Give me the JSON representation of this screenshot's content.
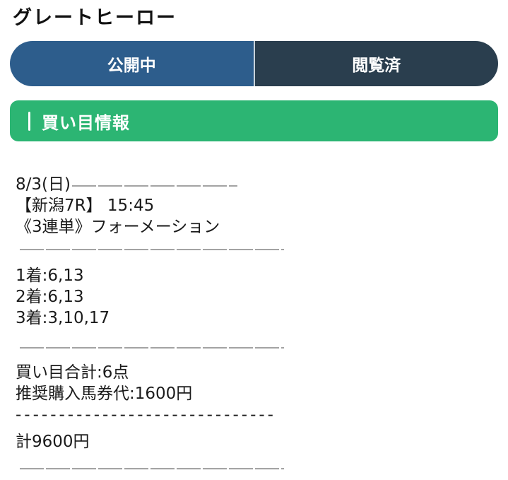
{
  "header": {
    "title": "グレートヒーロー"
  },
  "tabs": [
    {
      "label": "公開中",
      "state": "active"
    },
    {
      "label": "閲覧済",
      "state": "inactive"
    }
  ],
  "section": {
    "title": "買い目情報"
  },
  "race": {
    "date": "8/3(日)",
    "name_time": "【新潟7R】 15:45",
    "bet_type": "《3連単》フォーメーション"
  },
  "bets": [
    "1着:6,13",
    "2着:6,13",
    "3着:3,10,17"
  ],
  "summary": {
    "total_points": "買い目合計:6点",
    "recommended_cost": "推奨購入馬券代:1600円",
    "separator": "------------------------------",
    "total": "計9600円"
  },
  "colors": {
    "tab_active_bg": "#2d5d8c",
    "tab_inactive_bg": "#2a3e4e",
    "section_banner_bg": "#2cb573",
    "text": "#1b1b1b",
    "divider": "#a3a3a3"
  }
}
